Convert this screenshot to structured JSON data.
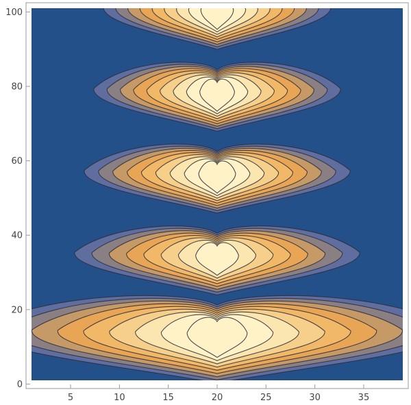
{
  "chart_data": {
    "type": "heatmap",
    "subtype": "contour",
    "title": "",
    "xlabel": "",
    "ylabel": "",
    "xlim": [
      1,
      39
    ],
    "ylim": [
      1,
      101
    ],
    "x_ticks": [
      5,
      10,
      15,
      20,
      25,
      30,
      35
    ],
    "y_ticks": [
      0,
      20,
      40,
      60,
      80,
      100
    ],
    "grid": false,
    "legend": "none",
    "colors": {
      "background": "#24508a",
      "level_1": "#5f6e9f",
      "level_2": "#8a7f82",
      "level_3": "#c69a67",
      "level_4": "#e8a555",
      "level_5": "#f1b868",
      "level_6": "#f6d08a",
      "level_7": "#fbe6b0",
      "peak": "#fff2c6",
      "contour_line": "#2c2c38"
    },
    "peaks": [
      {
        "x": 20,
        "y": 13,
        "level": 9
      },
      {
        "x": 20,
        "y": 34,
        "level": 8
      },
      {
        "x": 20,
        "y": 56,
        "level": 9
      },
      {
        "x": 20,
        "y": 78,
        "level": 9
      },
      {
        "x": 20,
        "y": 100,
        "level": 9
      }
    ]
  }
}
